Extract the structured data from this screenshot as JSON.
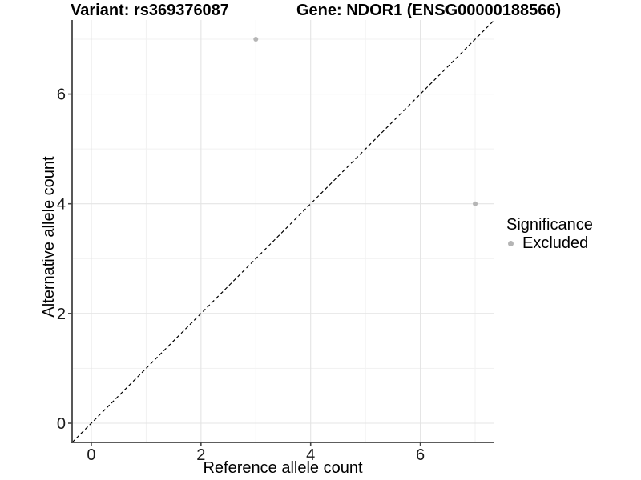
{
  "header": {
    "variant_title": "Variant: rs369376087",
    "gene_title": "Gene: NDOR1 (ENSG00000188566)"
  },
  "legend": {
    "title": "Significance",
    "items": [
      {
        "label": "Excluded",
        "color": "#b5b5b5"
      }
    ]
  },
  "chart_data": {
    "type": "scatter",
    "title": "Variant: rs369376087   Gene: NDOR1 (ENSG00000188566)",
    "xlabel": "Reference allele count",
    "ylabel": "Alternative allele count",
    "xlim": [
      -0.35,
      7.35
    ],
    "ylim": [
      -0.35,
      7.35
    ],
    "x_ticks": [
      0,
      2,
      4,
      6
    ],
    "y_ticks": [
      0,
      2,
      4,
      6
    ],
    "x_minor_ticks": [
      1,
      3,
      5,
      7
    ],
    "y_minor_ticks": [
      1,
      3,
      5,
      7
    ],
    "grid": true,
    "legend_position": "right",
    "series": [
      {
        "name": "Excluded",
        "color": "#b5b5b5",
        "points": [
          {
            "x": 3,
            "y": 7
          },
          {
            "x": 7,
            "y": 4
          }
        ]
      }
    ],
    "reference_line": {
      "type": "identity",
      "slope": 1,
      "intercept": 0,
      "style": "dashed",
      "color": "#000000"
    }
  },
  "colors": {
    "background": "#ffffff",
    "grid_major": "#e4e4e4",
    "grid_minor": "#f1f1f1",
    "axis_line": "#464646",
    "tick_label": "#1a1a1a",
    "point": "#b5b5b5"
  }
}
